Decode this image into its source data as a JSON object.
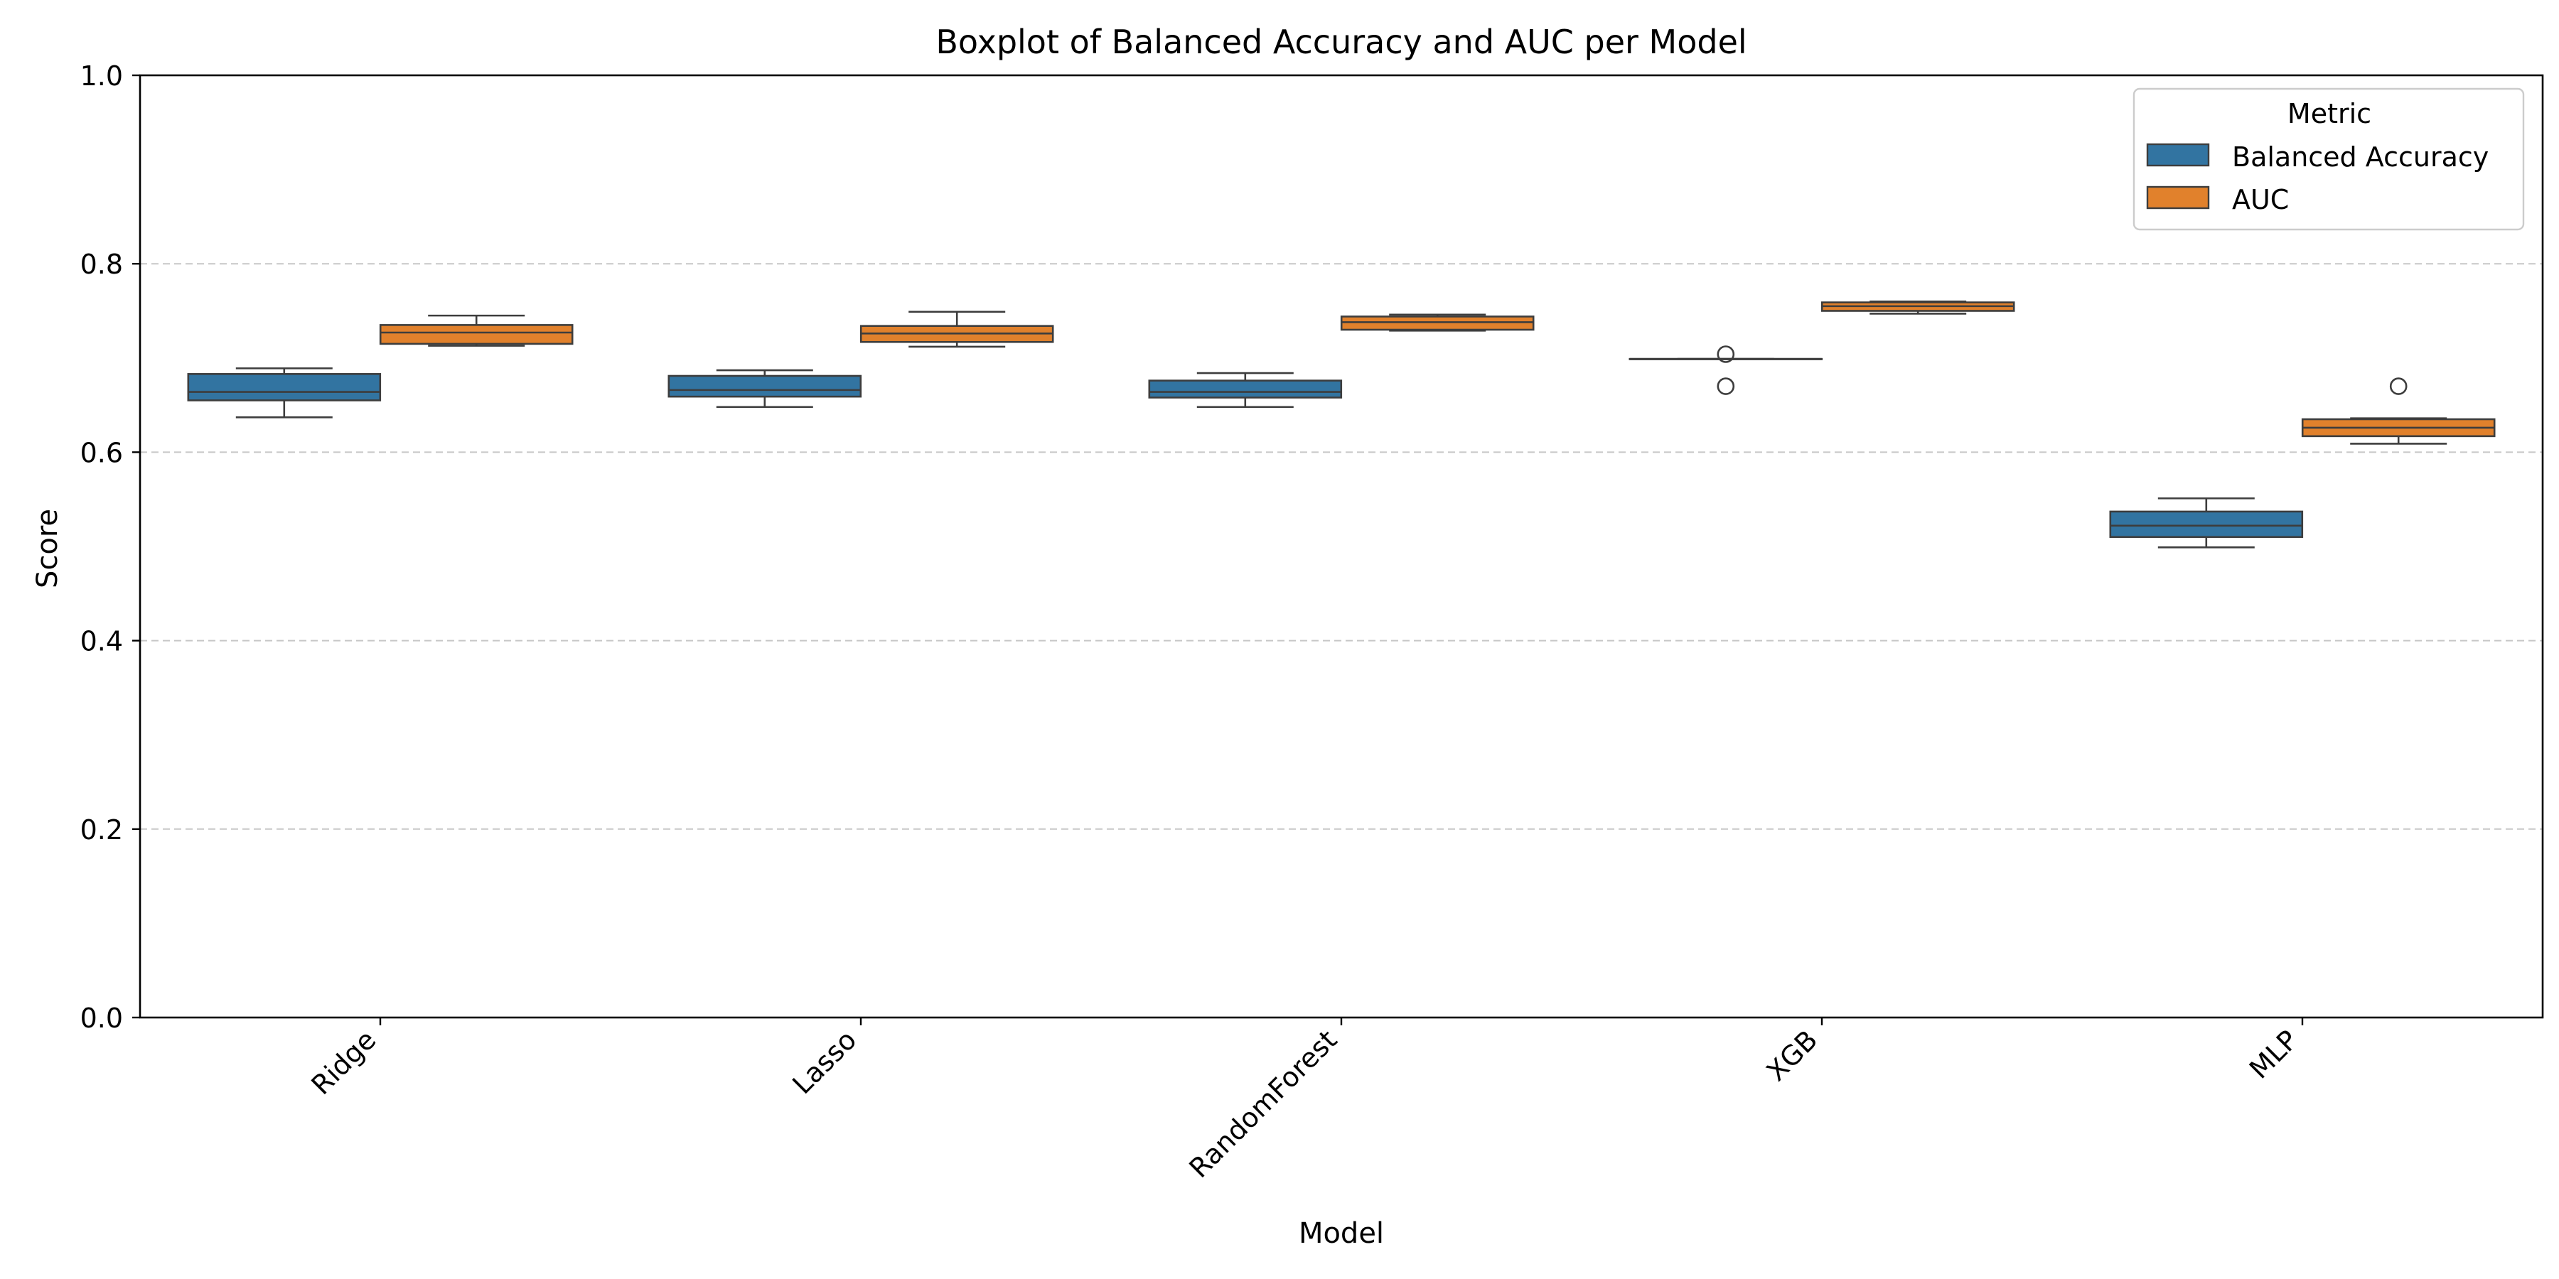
{
  "chart_data": {
    "type": "boxplot",
    "title": "Boxplot of Balanced Accuracy and AUC per Model",
    "xlabel": "Model",
    "ylabel": "Score",
    "ylim": [
      0.0,
      1.0
    ],
    "yticks": [
      "0.0",
      "0.2",
      "0.4",
      "0.6",
      "0.8",
      "1.0"
    ],
    "grid": "horizontal dashed",
    "categories": [
      "Ridge",
      "Lasso",
      "RandomForest",
      "XGB",
      "MLP"
    ],
    "legend": {
      "title": "Metric",
      "placement": "top-right"
    },
    "series": [
      {
        "name": "Balanced Accuracy",
        "color": "#3274a1",
        "boxes": [
          {
            "min": 0.637,
            "q1": 0.655,
            "median": 0.664,
            "q3": 0.683,
            "max": 0.689,
            "outliers": []
          },
          {
            "min": 0.648,
            "q1": 0.659,
            "median": 0.666,
            "q3": 0.681,
            "max": 0.687,
            "outliers": []
          },
          {
            "min": 0.648,
            "q1": 0.658,
            "median": 0.664,
            "q3": 0.676,
            "max": 0.684,
            "outliers": []
          },
          {
            "min": 0.699,
            "q1": 0.699,
            "median": 0.699,
            "q3": 0.699,
            "max": 0.699,
            "outliers": [
              0.704,
              0.67
            ]
          },
          {
            "min": 0.499,
            "q1": 0.51,
            "median": 0.522,
            "q3": 0.537,
            "max": 0.551,
            "outliers": []
          }
        ]
      },
      {
        "name": "AUC",
        "color": "#e1812c",
        "boxes": [
          {
            "min": 0.713,
            "q1": 0.715,
            "median": 0.727,
            "q3": 0.735,
            "max": 0.745,
            "outliers": []
          },
          {
            "min": 0.712,
            "q1": 0.717,
            "median": 0.726,
            "q3": 0.734,
            "max": 0.749,
            "outliers": []
          },
          {
            "min": 0.729,
            "q1": 0.73,
            "median": 0.738,
            "q3": 0.744,
            "max": 0.746,
            "outliers": []
          },
          {
            "min": 0.747,
            "q1": 0.75,
            "median": 0.755,
            "q3": 0.759,
            "max": 0.76,
            "outliers": []
          },
          {
            "min": 0.609,
            "q1": 0.617,
            "median": 0.626,
            "q3": 0.635,
            "max": 0.636,
            "outliers": [
              0.67
            ]
          }
        ]
      }
    ]
  }
}
